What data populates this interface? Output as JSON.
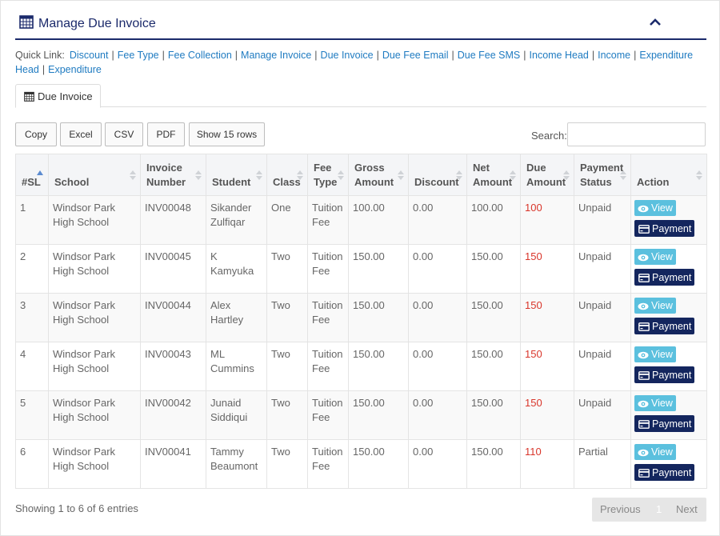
{
  "header": {
    "title": "Manage Due Invoice",
    "title_icon": "calendar-grid-icon",
    "collapse_icon": "chevron-up-icon"
  },
  "quick_link": {
    "label": "Quick Link:",
    "links": [
      "Discount",
      "Fee Type",
      "Fee Collection",
      "Manage Invoice",
      "Due Invoice",
      "Due Fee Email",
      "Due Fee SMS",
      "Income Head",
      "Income",
      "Expenditure Head",
      "Expenditure"
    ]
  },
  "tab": {
    "label": "Due Invoice",
    "icon": "calendar-grid-icon"
  },
  "toolbar": {
    "copy": "Copy",
    "excel": "Excel",
    "csv": "CSV",
    "pdf": "PDF",
    "show_rows": "Show 15 rows",
    "search_label": "Search:",
    "search_value": ""
  },
  "table": {
    "headers": [
      "#SL",
      "School",
      "Invoice Number",
      "Student",
      "Class",
      "Fee Type",
      "Gross Amount",
      "Discount",
      "Net Amount",
      "Due Amount",
      "Payment Status",
      "Action"
    ],
    "rows": [
      [
        "1",
        "Windsor Park High School",
        "INV00048",
        "Sikander Zulfiqar",
        "One",
        "Tuition Fee",
        "100.00",
        "0.00",
        "100.00",
        "100",
        "Unpaid"
      ],
      [
        "2",
        "Windsor Park High School",
        "INV00045",
        "K Kamyuka",
        "Two",
        "Tuition Fee",
        "150.00",
        "0.00",
        "150.00",
        "150",
        "Unpaid"
      ],
      [
        "3",
        "Windsor Park High School",
        "INV00044",
        "Alex Hartley",
        "Two",
        "Tuition Fee",
        "150.00",
        "0.00",
        "150.00",
        "150",
        "Unpaid"
      ],
      [
        "4",
        "Windsor Park High School",
        "INV00043",
        "ML Cummins",
        "Two",
        "Tuition Fee",
        "150.00",
        "0.00",
        "150.00",
        "150",
        "Unpaid"
      ],
      [
        "5",
        "Windsor Park High School",
        "INV00042",
        "Junaid Siddiqui",
        "Two",
        "Tuition Fee",
        "150.00",
        "0.00",
        "150.00",
        "150",
        "Unpaid"
      ],
      [
        "6",
        "Windsor Park High School",
        "INV00041",
        "Tammy Beaumont",
        "Two",
        "Tuition Fee",
        "150.00",
        "0.00",
        "150.00",
        "110",
        "Partial"
      ]
    ],
    "actions": {
      "view": "View",
      "payment": "Payment"
    }
  },
  "footer": {
    "info": "Showing 1 to 6 of 6 entries",
    "previous": "Previous",
    "page": "1",
    "next": "Next"
  },
  "colors": {
    "primary": "#1b2a6b",
    "link": "#1f7bc1",
    "due": "#d9362b",
    "view_btn": "#5bc0de",
    "pay_btn": "#14265e"
  }
}
